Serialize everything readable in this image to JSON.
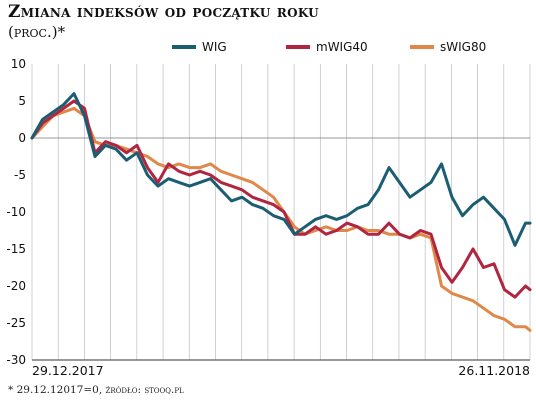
{
  "title": "Zmiana indeksów od początku roku",
  "subtitle": "(proc.)*",
  "footnote": "* 29.12.12017=0, źródło: stooq.pl",
  "colors": {
    "WIG": "#1b5d73",
    "mWIG40": "#b0253f",
    "sWIG80": "#e0884a",
    "grid": "#bdbdbd"
  },
  "chart_data": {
    "type": "line",
    "title": "Zmiana indeksów od początku roku",
    "ylabel": "",
    "xlabel": "",
    "ylim": [
      -30,
      10
    ],
    "yticks": [
      "10",
      "5",
      "0",
      "-5",
      "-10",
      "-15",
      "-20",
      "-25",
      "-30"
    ],
    "xtick_labels": [
      "29.12.2017",
      "26.11.2018"
    ],
    "grid": "vertical",
    "legend": "top",
    "x": [
      "2017-12-29",
      "2018-01-05",
      "2018-01-12",
      "2018-01-19",
      "2018-01-26",
      "2018-02-02",
      "2018-02-09",
      "2018-02-16",
      "2018-02-23",
      "2018-03-02",
      "2018-03-09",
      "2018-03-16",
      "2018-03-23",
      "2018-03-30",
      "2018-04-06",
      "2018-04-13",
      "2018-04-20",
      "2018-04-27",
      "2018-05-04",
      "2018-05-11",
      "2018-05-18",
      "2018-05-25",
      "2018-06-01",
      "2018-06-08",
      "2018-06-15",
      "2018-06-22",
      "2018-06-29",
      "2018-07-06",
      "2018-07-13",
      "2018-07-20",
      "2018-07-27",
      "2018-08-03",
      "2018-08-10",
      "2018-08-17",
      "2018-08-24",
      "2018-08-31",
      "2018-09-07",
      "2018-09-14",
      "2018-09-21",
      "2018-09-28",
      "2018-10-05",
      "2018-10-12",
      "2018-10-19",
      "2018-10-26",
      "2018-11-02",
      "2018-11-09",
      "2018-11-16",
      "2018-11-23",
      "2018-11-26"
    ],
    "series": [
      {
        "name": "WIG",
        "values": [
          0,
          2.5,
          3.5,
          4.5,
          6,
          3,
          -2.5,
          -1,
          -1.5,
          -3,
          -2,
          -5,
          -6.5,
          -5.5,
          -6,
          -6.5,
          -6,
          -5.5,
          -7,
          -8.5,
          -8,
          -9,
          -9.5,
          -10.5,
          -11,
          -13,
          -12,
          -11,
          -10.5,
          -11,
          -10.5,
          -9.5,
          -9,
          -7,
          -4,
          -6,
          -8,
          -7,
          -6,
          -3.5,
          -8,
          -10.5,
          -9,
          -8,
          -9.5,
          -11,
          -14.5,
          -11.5,
          -11.5
        ]
      },
      {
        "name": "mWIG40",
        "values": [
          0,
          2,
          3,
          4,
          5,
          4,
          -2,
          -0.5,
          -1,
          -2,
          -1,
          -4,
          -6,
          -3.5,
          -4.5,
          -5,
          -4.5,
          -5,
          -6,
          -6.5,
          -7,
          -8,
          -8.5,
          -9,
          -10,
          -13,
          -13,
          -12,
          -13,
          -12.5,
          -11.5,
          -12,
          -13,
          -13,
          -11.5,
          -13,
          -13.5,
          -12.5,
          -13,
          -17.5,
          -19.5,
          -17.5,
          -15,
          -17.5,
          -17,
          -20.5,
          -21.5,
          -20,
          -20.5
        ]
      },
      {
        "name": "sWIG80",
        "values": [
          0,
          1.5,
          3,
          3.5,
          4,
          3,
          -0.5,
          -1,
          -1,
          -1.5,
          -2,
          -2.5,
          -3.5,
          -4,
          -3.5,
          -4,
          -4,
          -3.5,
          -4.5,
          -5,
          -5.5,
          -6,
          -7,
          -8,
          -10,
          -12,
          -13,
          -12.5,
          -12,
          -12.5,
          -12.5,
          -12,
          -12.5,
          -12.5,
          -13,
          -13,
          -13.5,
          -13,
          -13.5,
          -20,
          -21,
          -21.5,
          -22,
          -23,
          -24,
          -24.5,
          -25.5,
          -25.5,
          -26
        ]
      }
    ]
  }
}
